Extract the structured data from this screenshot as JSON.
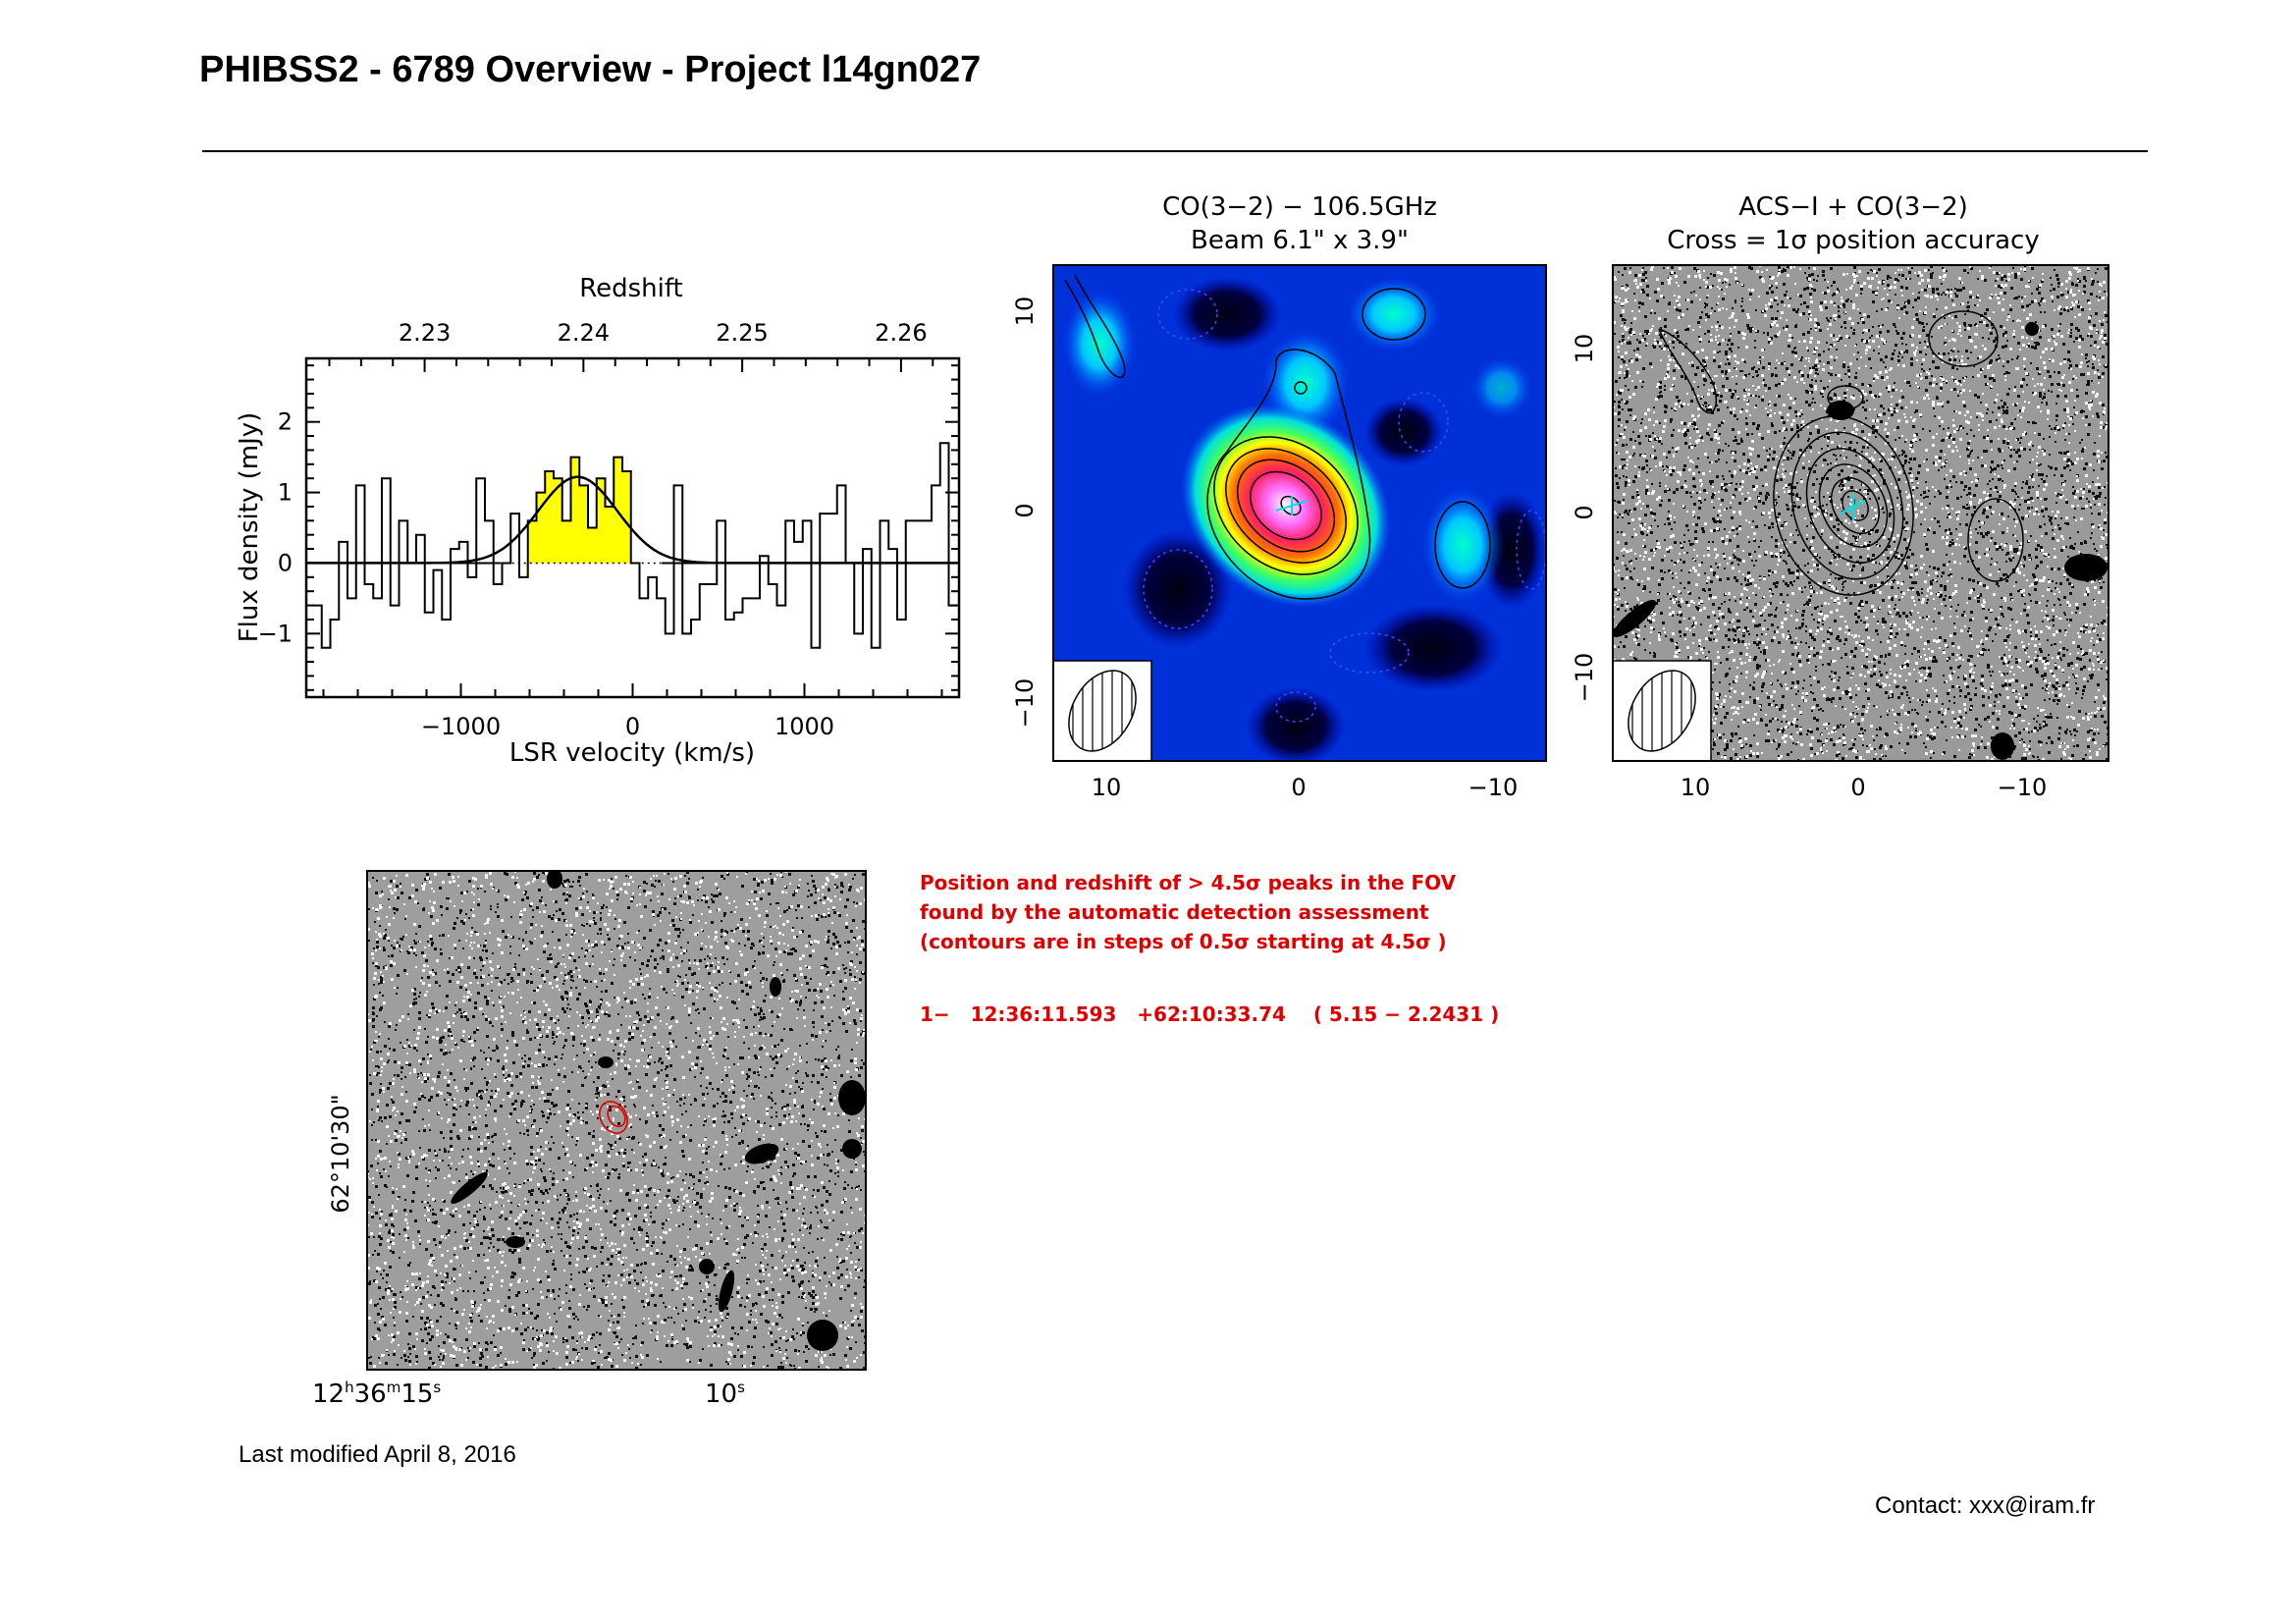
{
  "page_title": "PHIBSS2 - 6789 Overview - Project l14gn027",
  "chart_data": {
    "type": "histogram-line",
    "top_axis_label": "Redshift",
    "top_ticks": [
      "2.23",
      "2.24",
      "2.25",
      "2.26"
    ],
    "top_tick_values": [
      2.23,
      2.24,
      2.25,
      2.26
    ],
    "x_label": "LSR velocity (km/s)",
    "y_label": "Flux density (mJy)",
    "x_ticks": [
      "−1000",
      "0",
      "1000"
    ],
    "x_tick_values": [
      -1000,
      0,
      1000
    ],
    "y_ticks": [
      "−1",
      "0",
      "1",
      "2"
    ],
    "y_tick_values": [
      -1,
      0,
      1,
      2
    ],
    "xlim": [
      -1900,
      1900
    ],
    "ylim": [
      -1.9,
      2.9
    ],
    "line_window": [
      -620,
      20
    ],
    "gaussian": {
      "center": -320,
      "sigma": 230,
      "amplitude": 1.22
    },
    "channels": {
      "start": -1860,
      "width": 50,
      "values": [
        -0.6,
        -1.2,
        -0.8,
        0.3,
        -0.5,
        1.1,
        -0.3,
        -0.5,
        1.2,
        -0.6,
        0.6,
        0.0,
        0.4,
        -0.7,
        -0.1,
        -0.8,
        0.2,
        0.3,
        -0.2,
        1.2,
        0.6,
        -0.3,
        0.0,
        0.7,
        -0.2,
        0.6,
        1.0,
        1.3,
        1.2,
        0.6,
        1.5,
        1.1,
        0.5,
        1.2,
        0.8,
        1.5,
        1.3,
        0.0,
        -0.5,
        -0.2,
        -0.5,
        -1.0,
        1.1,
        -1.0,
        -0.8,
        -0.3,
        -0.3,
        0.6,
        -0.8,
        -0.7,
        -0.5,
        -0.5,
        0.1,
        -0.3,
        -0.6,
        0.6,
        0.3,
        0.6,
        -1.2,
        0.7,
        0.7,
        1.1,
        0.0,
        -1.0,
        0.2,
        -1.2,
        0.6,
        0.2,
        -0.8,
        0.6,
        0.6,
        0.6,
        1.1,
        1.7,
        -0.6
      ]
    }
  },
  "co_map": {
    "title_line1": "CO(3−2) − 106.5GHz",
    "title_line2": "Beam 6.1\" x 3.9\"",
    "x_ticks": [
      "10",
      "0",
      "−10"
    ],
    "y_ticks": [
      "10",
      "0",
      "−10"
    ]
  },
  "acs_map": {
    "title_line1": "ACS−I + CO(3−2)",
    "title_line2": "Cross = 1σ position accuracy",
    "x_ticks": [
      "10",
      "0",
      "−10"
    ],
    "y_ticks": [
      "10",
      "0",
      "−10"
    ]
  },
  "field_image": {
    "ra_label_left": "12h36m15s",
    "ra_label_right": "10s",
    "dec_label": "62°10'30\""
  },
  "detection": {
    "line1": "Position and redshift of > 4.5σ peaks in the FOV",
    "line2": "found by the automatic detection assessment",
    "line3": "(contours are in steps of 0.5σ starting at 4.5σ )",
    "peak": "1−   12:36:11.593   +62:10:33.74    ( 5.15 − 2.2431 )"
  },
  "footer": {
    "modified": "Last modified April 8, 2016",
    "contact": "Contact: xxx@iram.fr"
  },
  "colors": {
    "accent": "#e00000",
    "line_fill": "#ffff00",
    "cross": "#00e0e0"
  }
}
